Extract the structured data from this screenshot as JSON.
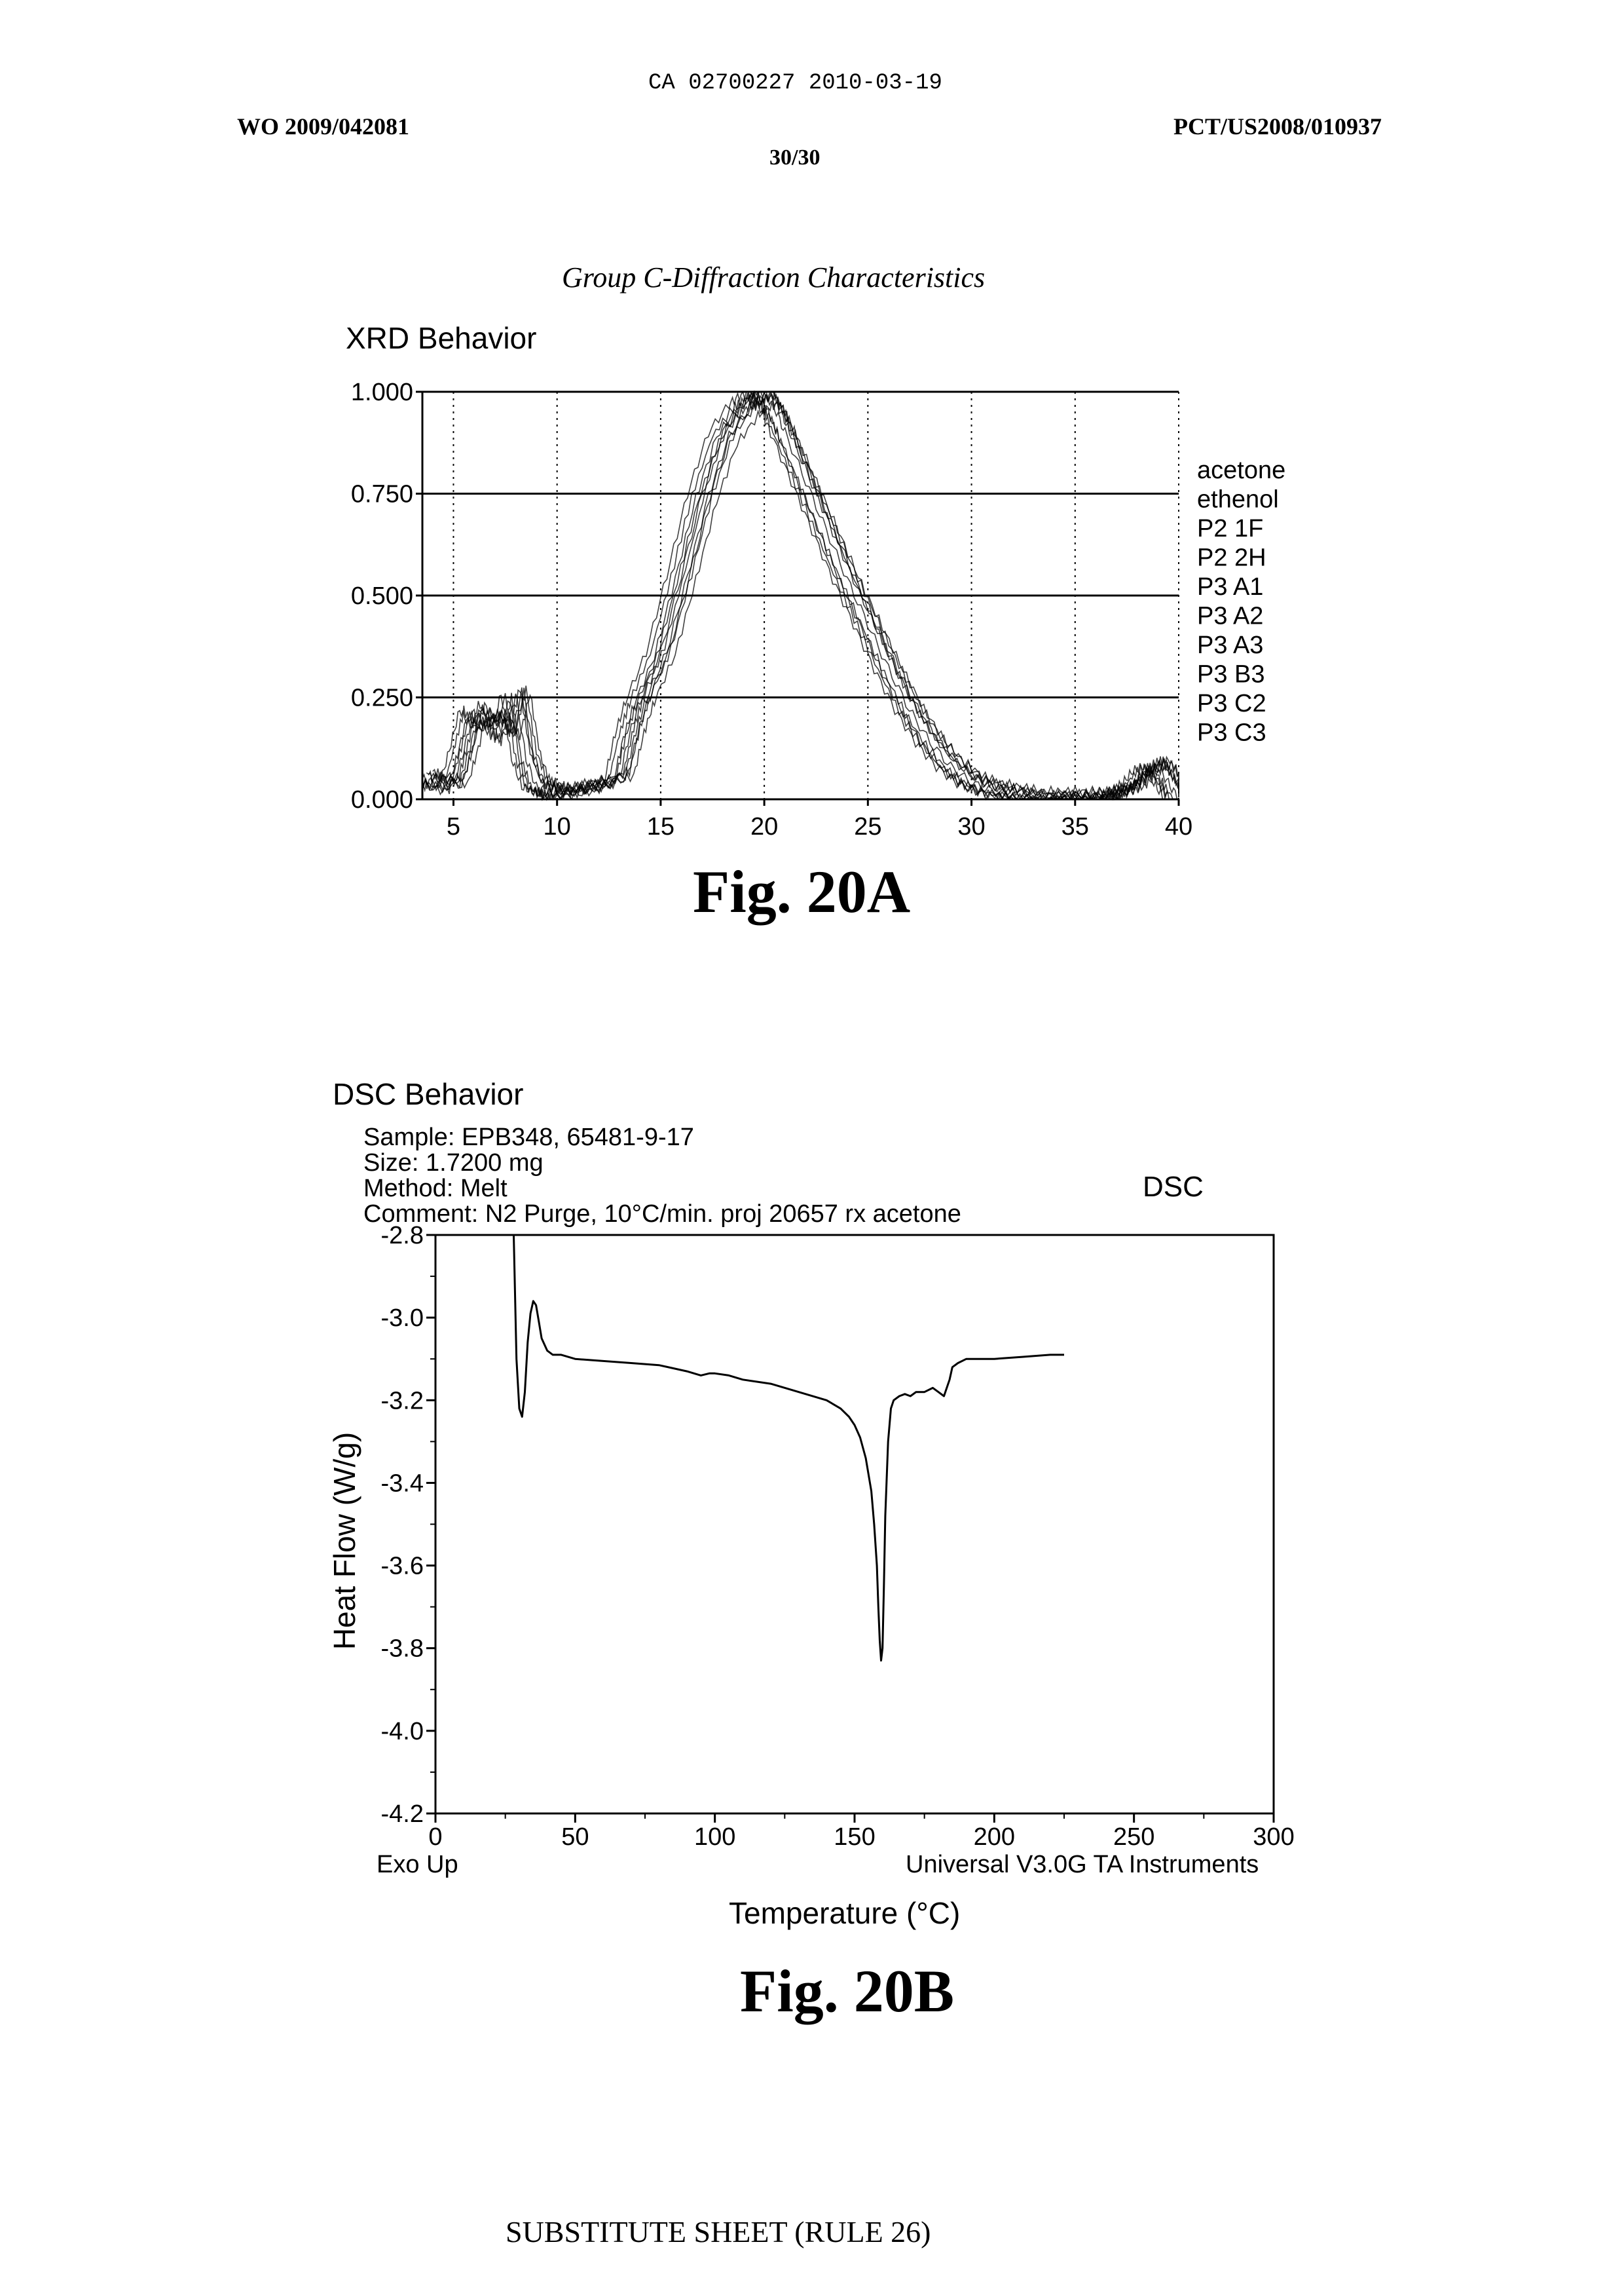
{
  "header": {
    "ca_number": "CA 02700227 2010-03-19",
    "wo_number": "WO 2009/042081",
    "pct_number": "PCT/US2008/010937",
    "sheet": "30/30"
  },
  "caption": "Group C-Diffraction Characteristics",
  "footer": "SUBSTITUTE SHEET (RULE 26)",
  "figures": {
    "fig_a": "Fig. 20A",
    "fig_b": "Fig. 20B"
  },
  "chart_data": [
    {
      "type": "line",
      "title": "XRD Behavior",
      "xlabel": "",
      "ylabel": "",
      "xlim": [
        3.5,
        40
      ],
      "ylim": [
        0,
        1
      ],
      "x_ticks": [
        "5",
        "10",
        "15",
        "20",
        "25",
        "30",
        "35",
        "40"
      ],
      "y_ticks": [
        "0.000",
        "0.250",
        "0.500",
        "0.750",
        "1.000"
      ],
      "grid": "vertical dotted at x ticks, horizontal solid at y ticks",
      "legend_position": "right",
      "legend": [
        "acetone",
        "ethenol",
        "P2 1F",
        "P2 2H",
        "P3 A1",
        "P3 A2",
        "P3 A3",
        "P3 B3",
        "P3 C2",
        "P3 C3"
      ],
      "x": [
        3.5,
        4,
        5,
        5.5,
        6,
        6.5,
        7,
        7.5,
        8,
        8.5,
        9,
        9.5,
        10,
        11,
        12,
        13,
        13.5,
        14,
        15,
        16,
        17,
        18,
        19,
        19.5,
        20,
        20.5,
        21,
        22,
        23,
        24,
        25,
        26,
        27,
        28,
        29,
        30,
        31,
        32,
        33,
        34,
        35,
        36,
        37,
        37.5,
        38,
        38.5,
        39,
        39.5,
        40
      ],
      "series": [
        {
          "name": "acetone",
          "y_offset": 0.0,
          "x_shift": 0.0,
          "scale": 1.0
        },
        {
          "name": "ethenol",
          "y_offset": 0.01,
          "x_shift": 0.3,
          "scale": 0.98
        },
        {
          "name": "P2 1F",
          "y_offset": -0.01,
          "x_shift": -0.3,
          "scale": 1.0
        },
        {
          "name": "P2 2H",
          "y_offset": 0.02,
          "x_shift": 0.5,
          "scale": 0.97
        },
        {
          "name": "P3 A1",
          "y_offset": 0.0,
          "x_shift": -0.5,
          "scale": 0.99
        },
        {
          "name": "P3 A2",
          "y_offset": 0.015,
          "x_shift": 0.2,
          "scale": 1.0
        },
        {
          "name": "P3 A3",
          "y_offset": -0.005,
          "x_shift": -0.2,
          "scale": 0.98
        },
        {
          "name": "P3 B3",
          "y_offset": 0.01,
          "x_shift": 0.7,
          "scale": 0.96
        },
        {
          "name": "P3 C2",
          "y_offset": 0.0,
          "x_shift": -0.7,
          "scale": 1.0
        },
        {
          "name": "P3 C3",
          "y_offset": 0.005,
          "x_shift": 0.4,
          "scale": 0.99
        }
      ],
      "base_values": [
        0.05,
        0.04,
        0.03,
        0.12,
        0.22,
        0.18,
        0.2,
        0.15,
        0.26,
        0.1,
        0.03,
        0.02,
        0.01,
        0.02,
        0.03,
        0.05,
        0.16,
        0.24,
        0.36,
        0.55,
        0.75,
        0.9,
        0.97,
        0.99,
        1.0,
        0.96,
        0.9,
        0.78,
        0.66,
        0.54,
        0.43,
        0.32,
        0.22,
        0.14,
        0.08,
        0.04,
        0.02,
        0.01,
        0.0,
        0.0,
        0.0,
        0.0,
        0.01,
        0.02,
        0.04,
        0.07,
        0.08,
        0.04,
        0.0
      ]
    },
    {
      "type": "line",
      "title": "DSC Behavior",
      "corner_label": "DSC",
      "info": [
        "Sample: EPB348, 65481-9-17",
        "Size:  1.7200 mg",
        "Method: Melt",
        "Comment: N2 Purge, 10°C/min. proj 20657 rx acetone"
      ],
      "xlabel": "Temperature (°C)",
      "ylabel": "Heat Flow (W/g)",
      "xlim": [
        0,
        300
      ],
      "ylim": [
        -4.2,
        -2.8
      ],
      "x_ticks": [
        "0",
        "50",
        "100",
        "150",
        "200",
        "250",
        "300"
      ],
      "y_ticks": [
        "-2.8",
        "-3.0",
        "-3.2",
        "-3.4",
        "-3.6",
        "-3.8",
        "-4.0",
        "-4.2"
      ],
      "footnote_left": "Exo Up",
      "footnote_right": "Universal V3.0G TA Instruments",
      "grid": false,
      "series": [
        {
          "x": [
            28,
            28.5,
            29,
            30,
            31,
            32,
            33,
            34,
            35,
            36,
            37,
            38,
            40,
            42,
            45,
            50,
            60,
            70,
            80,
            90,
            95,
            98,
            100,
            105,
            110,
            120,
            130,
            140,
            145,
            148,
            150,
            152,
            154,
            156,
            157,
            158,
            158.5,
            159,
            159.5,
            160,
            160.5,
            161,
            162,
            163,
            164,
            166,
            168,
            170,
            172,
            175,
            178,
            180,
            182,
            183,
            184,
            185,
            187,
            190,
            195,
            200,
            210,
            220,
            225
          ],
          "y": [
            -2.8,
            -2.95,
            -3.1,
            -3.22,
            -3.24,
            -3.18,
            -3.06,
            -2.99,
            -2.96,
            -2.97,
            -3.01,
            -3.05,
            -3.08,
            -3.09,
            -3.09,
            -3.1,
            -3.105,
            -3.11,
            -3.115,
            -3.13,
            -3.14,
            -3.135,
            -3.135,
            -3.14,
            -3.15,
            -3.16,
            -3.18,
            -3.2,
            -3.22,
            -3.24,
            -3.26,
            -3.29,
            -3.34,
            -3.42,
            -3.5,
            -3.6,
            -3.7,
            -3.78,
            -3.83,
            -3.8,
            -3.65,
            -3.48,
            -3.3,
            -3.22,
            -3.2,
            -3.19,
            -3.185,
            -3.19,
            -3.18,
            -3.18,
            -3.17,
            -3.18,
            -3.19,
            -3.17,
            -3.15,
            -3.12,
            -3.11,
            -3.1,
            -3.1,
            -3.1,
            -3.095,
            -3.09,
            -3.09
          ]
        }
      ]
    }
  ]
}
